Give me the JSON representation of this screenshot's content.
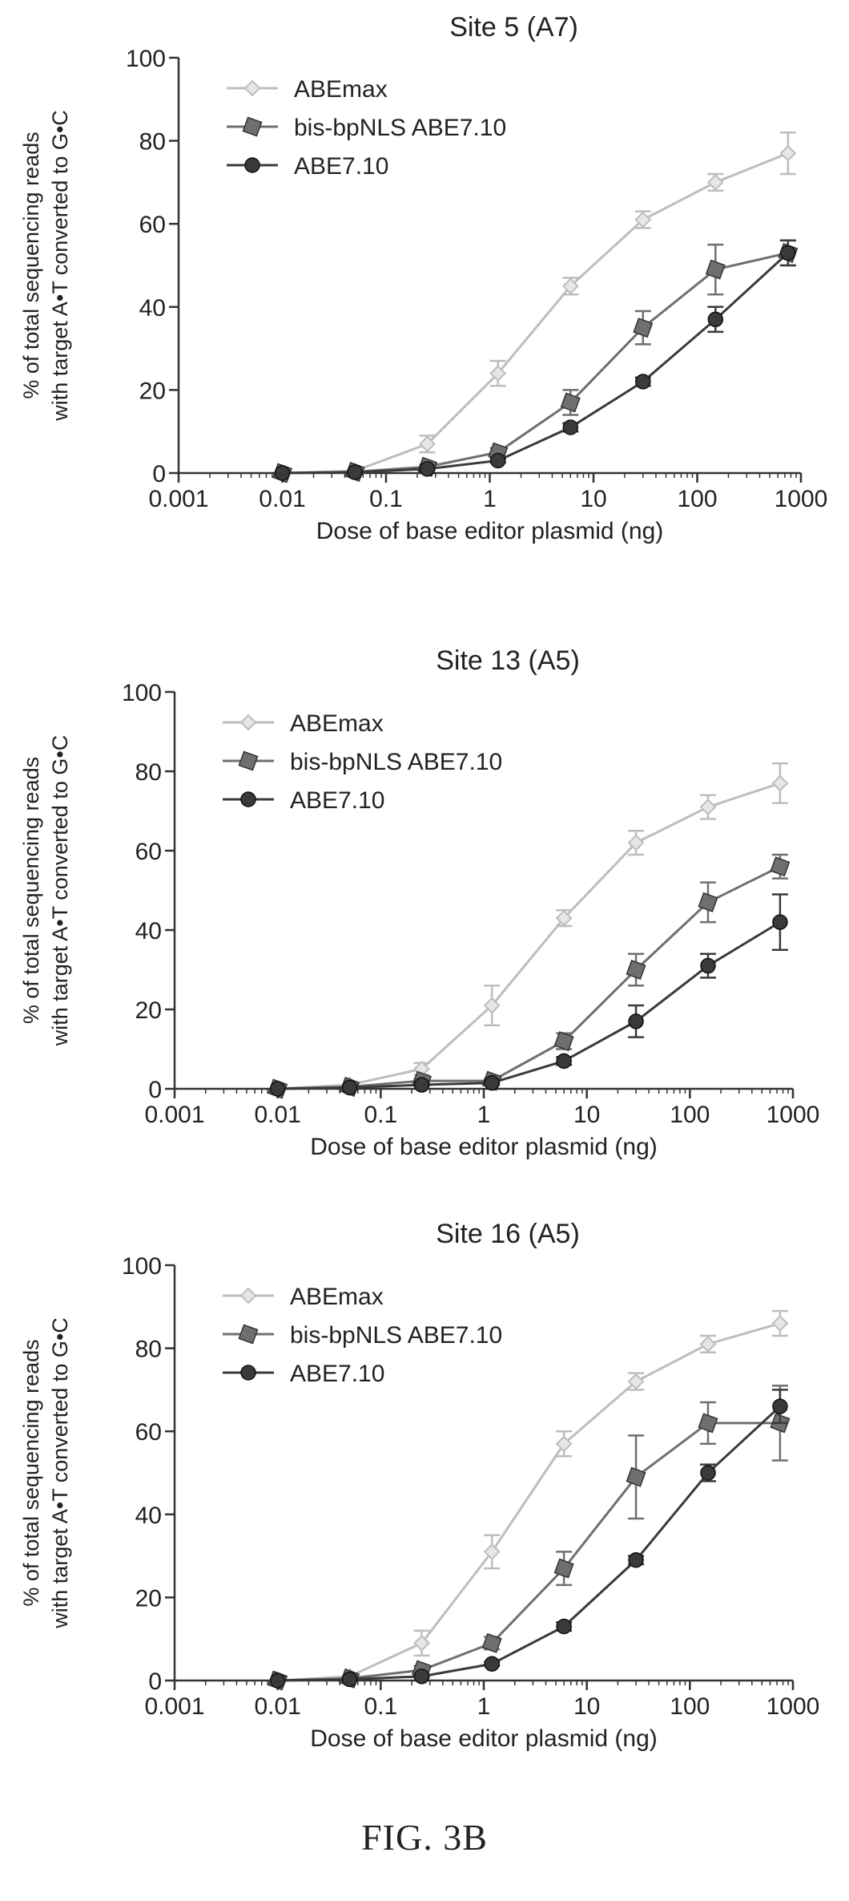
{
  "figure_label": "FIG. 3B",
  "colors": {
    "ABEmax": "#bdbdbd",
    "bis-bpNLS ABE7.10": "#6f6f6f",
    "ABE7.10": "#3a3a3a"
  },
  "chart_data": [
    {
      "type": "line",
      "title": "Site 5 (A7)",
      "xlabel": "Dose of base editor plasmid (ng)",
      "ylabel": [
        "% of total sequencing reads",
        "with target A•T converted to G•C"
      ],
      "xscale": "log",
      "xlim": [
        0.001,
        1000
      ],
      "ylim": [
        0,
        100
      ],
      "xticks": [
        "0.001",
        "0.01",
        "0.1",
        "1",
        "10",
        "100",
        "1000"
      ],
      "yticks": [
        "0",
        "20",
        "40",
        "60",
        "80",
        "100"
      ],
      "legend_position": "top-left",
      "series": [
        {
          "name": "ABEmax",
          "marker": "diamond",
          "x": [
            0.01,
            0.05,
            0.25,
            1.2,
            6,
            30,
            150,
            750
          ],
          "y": [
            0,
            0.5,
            7,
            24,
            45,
            61,
            70,
            77
          ],
          "err": [
            0,
            0,
            2,
            3,
            2,
            2,
            2,
            5
          ]
        },
        {
          "name": "bis-bpNLS ABE7.10",
          "marker": "square",
          "x": [
            0.01,
            0.05,
            0.25,
            1.2,
            6,
            30,
            150,
            750
          ],
          "y": [
            0,
            0.3,
            1.5,
            5,
            17,
            35,
            49,
            53
          ],
          "err": [
            0,
            0,
            0.5,
            1,
            3,
            4,
            6,
            3
          ]
        },
        {
          "name": "ABE7.10",
          "marker": "circle",
          "x": [
            0.01,
            0.05,
            0.25,
            1.2,
            6,
            30,
            150,
            750
          ],
          "y": [
            0,
            0.2,
            1,
            3,
            11,
            22,
            37,
            53
          ],
          "err": [
            0,
            0,
            0.3,
            0.5,
            1,
            1,
            3,
            3
          ]
        }
      ]
    },
    {
      "type": "line",
      "title": "Site 13 (A5)",
      "xlabel": "Dose of base editor plasmid (ng)",
      "ylabel": [
        "% of total sequencing reads",
        "with target A•T converted to G•C"
      ],
      "xscale": "log",
      "xlim": [
        0.001,
        1000
      ],
      "ylim": [
        0,
        100
      ],
      "xticks": [
        "0.001",
        "0.01",
        "0.1",
        "1",
        "10",
        "100",
        "1000"
      ],
      "yticks": [
        "0",
        "20",
        "40",
        "60",
        "80",
        "100"
      ],
      "legend_position": "top-left",
      "series": [
        {
          "name": "ABEmax",
          "marker": "diamond",
          "x": [
            0.01,
            0.05,
            0.25,
            1.2,
            6,
            30,
            150,
            750
          ],
          "y": [
            0,
            1,
            5,
            21,
            43,
            62,
            71,
            77
          ],
          "err": [
            0,
            0,
            1.5,
            5,
            2,
            3,
            3,
            5
          ]
        },
        {
          "name": "bis-bpNLS ABE7.10",
          "marker": "square",
          "x": [
            0.01,
            0.05,
            0.25,
            1.2,
            6,
            30,
            150,
            750
          ],
          "y": [
            0,
            0.5,
            2,
            2,
            12,
            30,
            47,
            56
          ],
          "err": [
            0,
            0,
            0.5,
            0.5,
            2,
            4,
            5,
            3
          ]
        },
        {
          "name": "ABE7.10",
          "marker": "circle",
          "x": [
            0.01,
            0.05,
            0.25,
            1.2,
            6,
            30,
            150,
            750
          ],
          "y": [
            0,
            0.3,
            1,
            1.5,
            7,
            17,
            31,
            42
          ],
          "err": [
            0,
            0,
            0.3,
            0.5,
            1,
            4,
            3,
            7
          ]
        }
      ]
    },
    {
      "type": "line",
      "title": "Site 16 (A5)",
      "xlabel": "Dose of base editor plasmid (ng)",
      "ylabel": [
        "% of total sequencing reads",
        "with target A•T converted to G•C"
      ],
      "xscale": "log",
      "xlim": [
        0.001,
        1000
      ],
      "ylim": [
        0,
        100
      ],
      "xticks": [
        "0.001",
        "0.01",
        "0.1",
        "1",
        "10",
        "100",
        "1000"
      ],
      "yticks": [
        "0",
        "20",
        "40",
        "60",
        "80",
        "100"
      ],
      "legend_position": "top-left",
      "series": [
        {
          "name": "ABEmax",
          "marker": "diamond",
          "x": [
            0.01,
            0.05,
            0.25,
            1.2,
            6,
            30,
            150,
            750
          ],
          "y": [
            0,
            1,
            9,
            31,
            57,
            72,
            81,
            86
          ],
          "err": [
            0,
            0,
            3,
            4,
            3,
            2,
            2,
            3
          ]
        },
        {
          "name": "bis-bpNLS ABE7.10",
          "marker": "square",
          "x": [
            0.01,
            0.05,
            0.25,
            1.2,
            6,
            30,
            150,
            750
          ],
          "y": [
            0,
            0.5,
            2.5,
            9,
            27,
            49,
            62,
            62
          ],
          "err": [
            0,
            0,
            1,
            1.5,
            4,
            10,
            5,
            9
          ]
        },
        {
          "name": "ABE7.10",
          "marker": "circle",
          "x": [
            0.01,
            0.05,
            0.25,
            1.2,
            6,
            30,
            150,
            750
          ],
          "y": [
            0,
            0.3,
            1,
            4,
            13,
            29,
            50,
            66
          ],
          "err": [
            0,
            0,
            0.3,
            0.5,
            1,
            1,
            2,
            4
          ]
        }
      ]
    }
  ]
}
